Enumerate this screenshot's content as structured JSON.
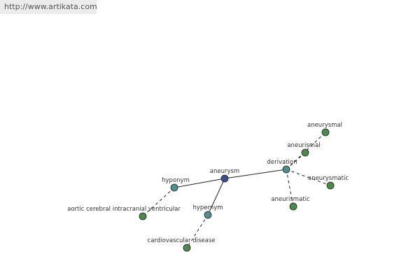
{
  "header": {
    "url": "http://www.artikata.com"
  },
  "nodes": [
    {
      "label": "aneurysm"
    },
    {
      "label": "hyponym"
    },
    {
      "label": "hypernym"
    },
    {
      "label": "derivation"
    },
    {
      "label": "aortic cerebral intracranial ventricular"
    },
    {
      "label": "cardiovascular disease"
    },
    {
      "label": "aneurysmal"
    },
    {
      "label": "aneurismal"
    },
    {
      "label": "aneurysmatic"
    },
    {
      "label": "aneurismatic"
    }
  ]
}
